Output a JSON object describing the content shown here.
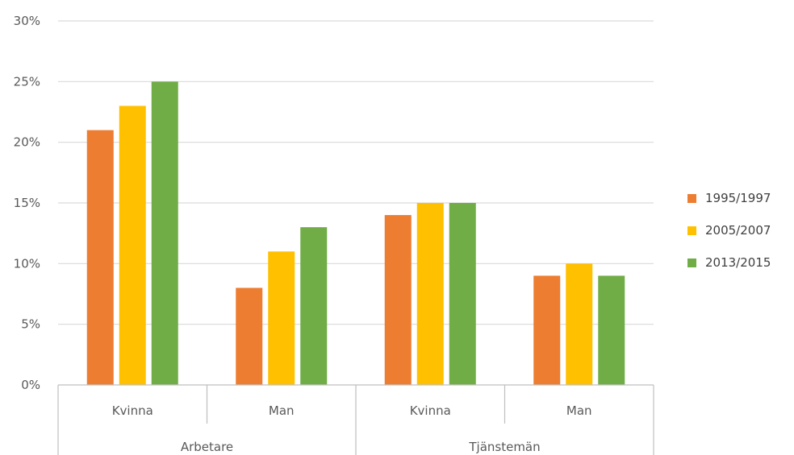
{
  "chart_data": {
    "type": "bar",
    "groups": [
      "Arbetare",
      "Tjänstemän"
    ],
    "categories": [
      "Kvinna",
      "Man",
      "Kvinna",
      "Man"
    ],
    "category_groups": [
      "Arbetare",
      "Arbetare",
      "Tjänstemän",
      "Tjänstemän"
    ],
    "series": [
      {
        "name": "1995/1997",
        "color": "#ED7D31",
        "values": [
          21,
          8,
          14,
          9
        ]
      },
      {
        "name": "2005/2007",
        "color": "#FFC000",
        "values": [
          23,
          11,
          15,
          10
        ]
      },
      {
        "name": "2013/2015",
        "color": "#70AD47",
        "values": [
          25,
          13,
          15,
          9
        ]
      }
    ],
    "ylim": [
      0,
      30
    ],
    "yticks": [
      0,
      5,
      10,
      15,
      20,
      25,
      30
    ],
    "ytick_labels": [
      "0%",
      "5%",
      "10%",
      "15%",
      "20%",
      "25%",
      "30%"
    ],
    "grid": true,
    "legend_position": "right",
    "title": "",
    "xlabel": "",
    "ylabel": ""
  }
}
